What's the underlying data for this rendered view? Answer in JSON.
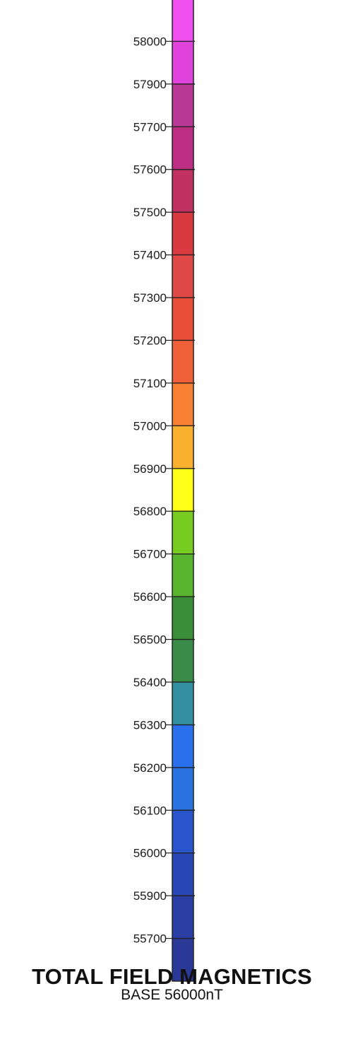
{
  "chart_data": {
    "type": "color-scale-legend",
    "title": "TOTAL FIELD MAGNETICS",
    "subtitle": "BASE 56000nT",
    "tick_labels": [
      "58000",
      "57900",
      "57700",
      "57600",
      "57500",
      "57400",
      "57300",
      "57200",
      "57100",
      "57000",
      "56900",
      "56800",
      "56700",
      "56600",
      "56500",
      "56400",
      "56300",
      "56200",
      "56100",
      "56000",
      "55900",
      "55700"
    ],
    "bins_top_to_bottom": [
      {
        "color": "#f050f0"
      },
      {
        "color": "#e044dc"
      },
      {
        "color": "#b83896"
      },
      {
        "color": "#bc2e84"
      },
      {
        "color": "#c03060"
      },
      {
        "color": "#d83a40"
      },
      {
        "color": "#e04848"
      },
      {
        "color": "#e84e38"
      },
      {
        "color": "#f06038"
      },
      {
        "color": "#f88032"
      },
      {
        "color": "#fcb030"
      },
      {
        "color": "#ffff18"
      },
      {
        "color": "#76cc20"
      },
      {
        "color": "#58b42c"
      },
      {
        "color": "#3a8e3a"
      },
      {
        "color": "#3a8a48"
      },
      {
        "color": "#3290a0"
      },
      {
        "color": "#2a70ec"
      },
      {
        "color": "#2a74e2"
      },
      {
        "color": "#2854cc"
      },
      {
        "color": "#2848b8"
      },
      {
        "color": "#2a3ea6"
      },
      {
        "color": "#2a3898"
      }
    ]
  }
}
